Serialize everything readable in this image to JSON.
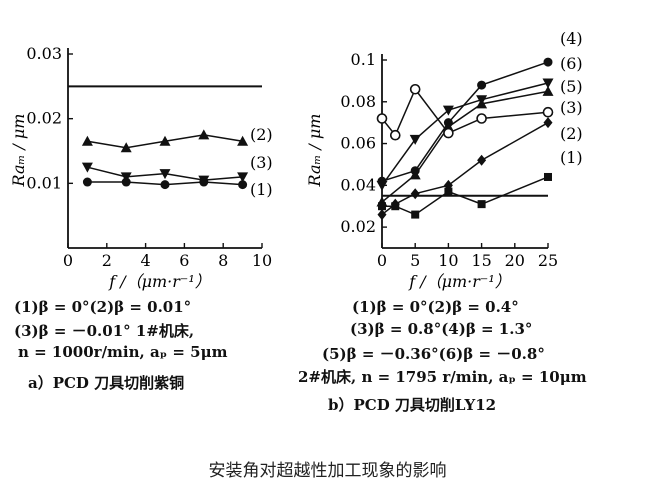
{
  "caption": "安装角对超越性加工现象的影响",
  "chart_data": [
    {
      "type": "line",
      "panel_caption": "a）PCD 刀具切削紫铜",
      "xlabel": "f /（μm·r⁻¹）",
      "ylabel": "Raₘ / μm",
      "xlim": [
        0,
        10
      ],
      "ylim": [
        0,
        0.03
      ],
      "xticks": [
        "0",
        "2",
        "4",
        "6",
        "8",
        "10"
      ],
      "yticks": [
        "0.01",
        "0.02",
        "0.03"
      ],
      "ytick_values": [
        0.01,
        0.02,
        0.03
      ],
      "reference_line": 0.025,
      "grid": false,
      "series": [
        {
          "name": "(2)",
          "marker": "triangle",
          "x": [
            1,
            3,
            5,
            7,
            9
          ],
          "y": [
            0.0165,
            0.0155,
            0.0165,
            0.0175,
            0.0165
          ]
        },
        {
          "name": "(3)",
          "marker": "triangle-down",
          "x": [
            1,
            3,
            5,
            7,
            9
          ],
          "y": [
            0.0125,
            0.011,
            0.0115,
            0.0105,
            0.011
          ]
        },
        {
          "name": "(1)",
          "marker": "circle",
          "x": [
            1,
            3,
            5,
            7,
            9
          ],
          "y": [
            0.0102,
            0.0102,
            0.0098,
            0.0102,
            0.0098
          ]
        }
      ],
      "legend_lines": [
        "(1)β = 0°(2)β = 0.01°",
        "(3)β = －0.01° 1#机床,",
        "n = 1000r/min, aₚ = 5μm"
      ]
    },
    {
      "type": "line",
      "panel_caption": "b）PCD 刀具切削LY12",
      "xlabel": "f /（μm·r⁻¹）",
      "ylabel": "Raₘ / μm",
      "xlim": [
        0,
        25
      ],
      "ylim": [
        0.01,
        0.1
      ],
      "xticks": [
        "0",
        "5",
        "10",
        "15",
        "20",
        "25"
      ],
      "yticks": [
        "0.02",
        "0.04",
        "0.06",
        "0.08",
        "0.1"
      ],
      "ytick_values": [
        0.02,
        0.04,
        0.06,
        0.08,
        0.1
      ],
      "reference_line": 0.035,
      "grid": false,
      "series": [
        {
          "name": "(4)",
          "marker": "circle",
          "x": [
            0,
            5,
            10,
            15,
            25
          ],
          "y": [
            0.042,
            0.047,
            0.07,
            0.088,
            0.099
          ]
        },
        {
          "name": "(6)",
          "marker": "triangle-down",
          "x": [
            0,
            5,
            10,
            15,
            25
          ],
          "y": [
            0.04,
            0.062,
            0.076,
            0.081,
            0.089
          ]
        },
        {
          "name": "(5)",
          "marker": "triangle",
          "x": [
            0,
            5,
            10,
            15,
            25
          ],
          "y": [
            0.032,
            0.045,
            0.068,
            0.079,
            0.085
          ]
        },
        {
          "name": "(3)",
          "marker": "open-circle",
          "x": [
            0,
            2,
            5,
            10,
            15,
            25
          ],
          "y": [
            0.072,
            0.064,
            0.086,
            0.065,
            0.072,
            0.075
          ]
        },
        {
          "name": "(2)",
          "marker": "diamond",
          "x": [
            0,
            2,
            5,
            10,
            15,
            25
          ],
          "y": [
            0.026,
            0.031,
            0.036,
            0.04,
            0.052,
            0.07
          ]
        },
        {
          "name": "(1)",
          "marker": "square",
          "x": [
            0,
            2,
            5,
            10,
            15,
            25
          ],
          "y": [
            0.03,
            0.03,
            0.026,
            0.037,
            0.031,
            0.044
          ]
        }
      ],
      "legend_lines": [
        "(1)β = 0°(2)β = 0.4°",
        "(3)β = 0.8°(4)β = 1.3°",
        "(5)β = －0.36°(6)β = －0.8°",
        "2#机床, n = 1795 r/min, aₚ = 10μm"
      ]
    }
  ]
}
